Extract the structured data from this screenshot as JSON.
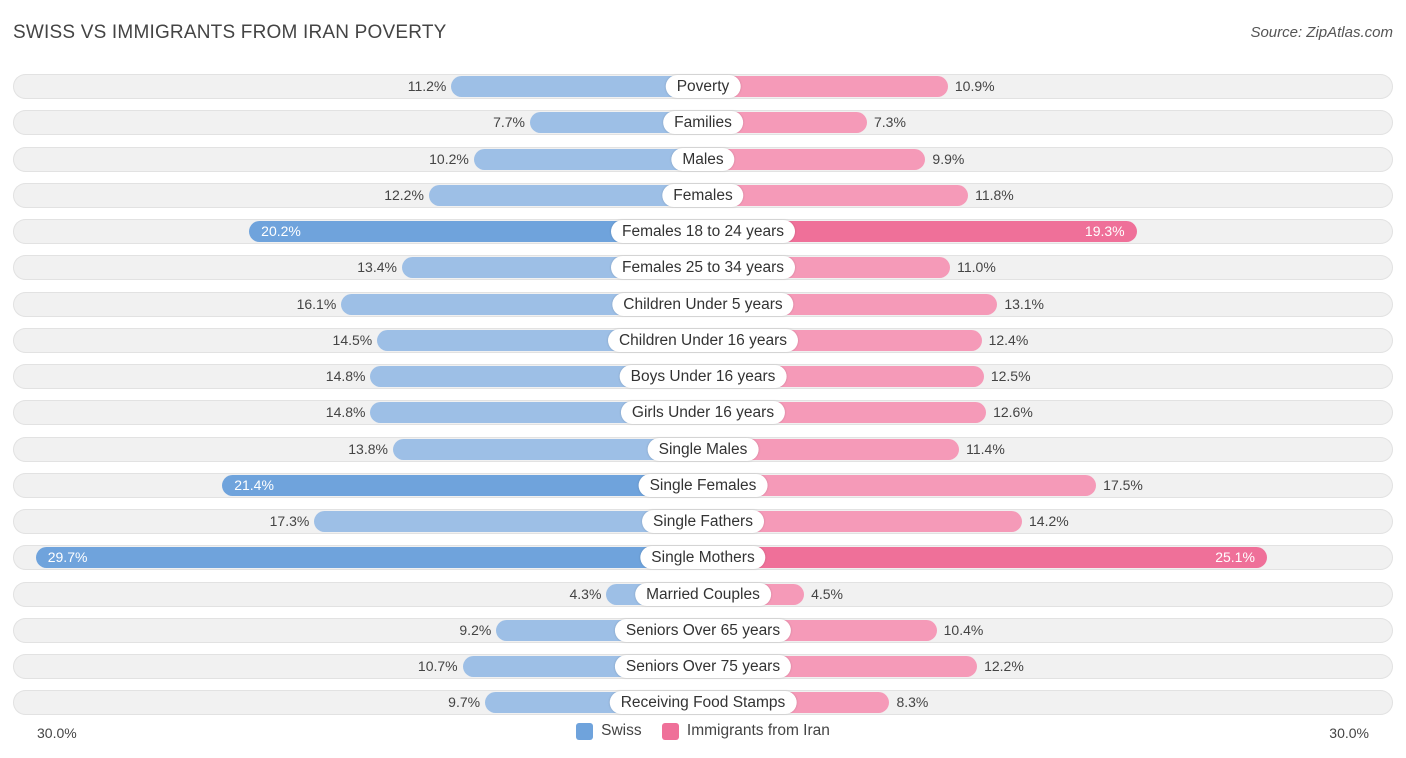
{
  "header": {
    "title": "SWISS VS IMMIGRANTS FROM IRAN POVERTY",
    "source": "Source: ZipAtlas.com"
  },
  "colors": {
    "swiss": "#9dbfe6",
    "swiss_strong": "#6fa3dc",
    "iran": "#f59ab8",
    "iran_strong": "#ef7099"
  },
  "chart_data": {
    "type": "bar",
    "orientation": "horizontal-diverging",
    "title": "SWISS VS IMMIGRANTS FROM IRAN POVERTY",
    "axis_max": 30.0,
    "axis_left_label": "30.0%",
    "axis_right_label": "30.0%",
    "legend": [
      "Swiss",
      "Immigrants from Iran"
    ],
    "categories": [
      "Poverty",
      "Families",
      "Males",
      "Females",
      "Females 18 to 24 years",
      "Females 25 to 34 years",
      "Children Under 5 years",
      "Children Under 16 years",
      "Boys Under 16 years",
      "Girls Under 16 years",
      "Single Males",
      "Single Females",
      "Single Fathers",
      "Single Mothers",
      "Married Couples",
      "Seniors Over 65 years",
      "Seniors Over 75 years",
      "Receiving Food Stamps"
    ],
    "series": [
      {
        "name": "Swiss",
        "values": [
          11.2,
          7.7,
          10.2,
          12.2,
          20.2,
          13.4,
          16.1,
          14.5,
          14.8,
          14.8,
          13.8,
          21.4,
          17.3,
          29.7,
          4.3,
          9.2,
          10.7,
          9.7
        ],
        "labels": [
          "11.2%",
          "7.7%",
          "10.2%",
          "12.2%",
          "20.2%",
          "13.4%",
          "16.1%",
          "14.5%",
          "14.8%",
          "14.8%",
          "13.8%",
          "21.4%",
          "17.3%",
          "29.7%",
          "4.3%",
          "9.2%",
          "10.7%",
          "9.7%"
        ]
      },
      {
        "name": "Immigrants from Iran",
        "values": [
          10.9,
          7.3,
          9.9,
          11.8,
          19.3,
          11.0,
          13.1,
          12.4,
          12.5,
          12.6,
          11.4,
          17.5,
          14.2,
          25.1,
          4.5,
          10.4,
          12.2,
          8.3
        ],
        "labels": [
          "10.9%",
          "7.3%",
          "9.9%",
          "11.8%",
          "19.3%",
          "11.0%",
          "13.1%",
          "12.4%",
          "12.5%",
          "12.6%",
          "11.4%",
          "17.5%",
          "14.2%",
          "25.1%",
          "4.5%",
          "10.4%",
          "12.2%",
          "8.3%"
        ]
      }
    ]
  }
}
